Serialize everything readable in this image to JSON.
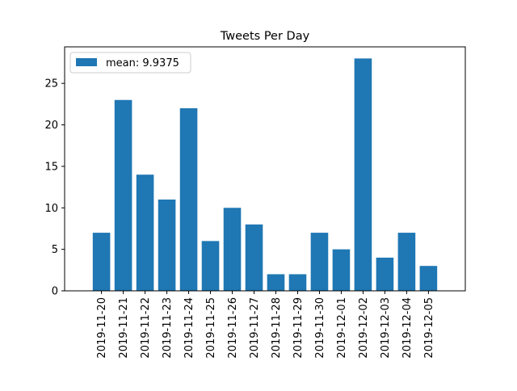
{
  "chart_data": {
    "type": "bar",
    "title": "Tweets Per Day",
    "xlabel": "",
    "ylabel": "",
    "categories": [
      "2019-11-20",
      "2019-11-21",
      "2019-11-22",
      "2019-11-23",
      "2019-11-24",
      "2019-11-25",
      "2019-11-26",
      "2019-11-27",
      "2019-11-28",
      "2019-11-29",
      "2019-11-30",
      "2019-12-01",
      "2019-12-02",
      "2019-12-03",
      "2019-12-04",
      "2019-12-05"
    ],
    "series": [
      {
        "name": "mean: 9.9375",
        "values": [
          7,
          23,
          14,
          11,
          22,
          6,
          10,
          8,
          2,
          2,
          7,
          5,
          28,
          4,
          7,
          3
        ]
      }
    ],
    "ylim": [
      0,
      29.4
    ],
    "yticks": [
      0,
      5,
      10,
      15,
      20,
      25
    ],
    "grid": false,
    "legend_position": "top-left",
    "bar_color": "#1f77b4"
  }
}
